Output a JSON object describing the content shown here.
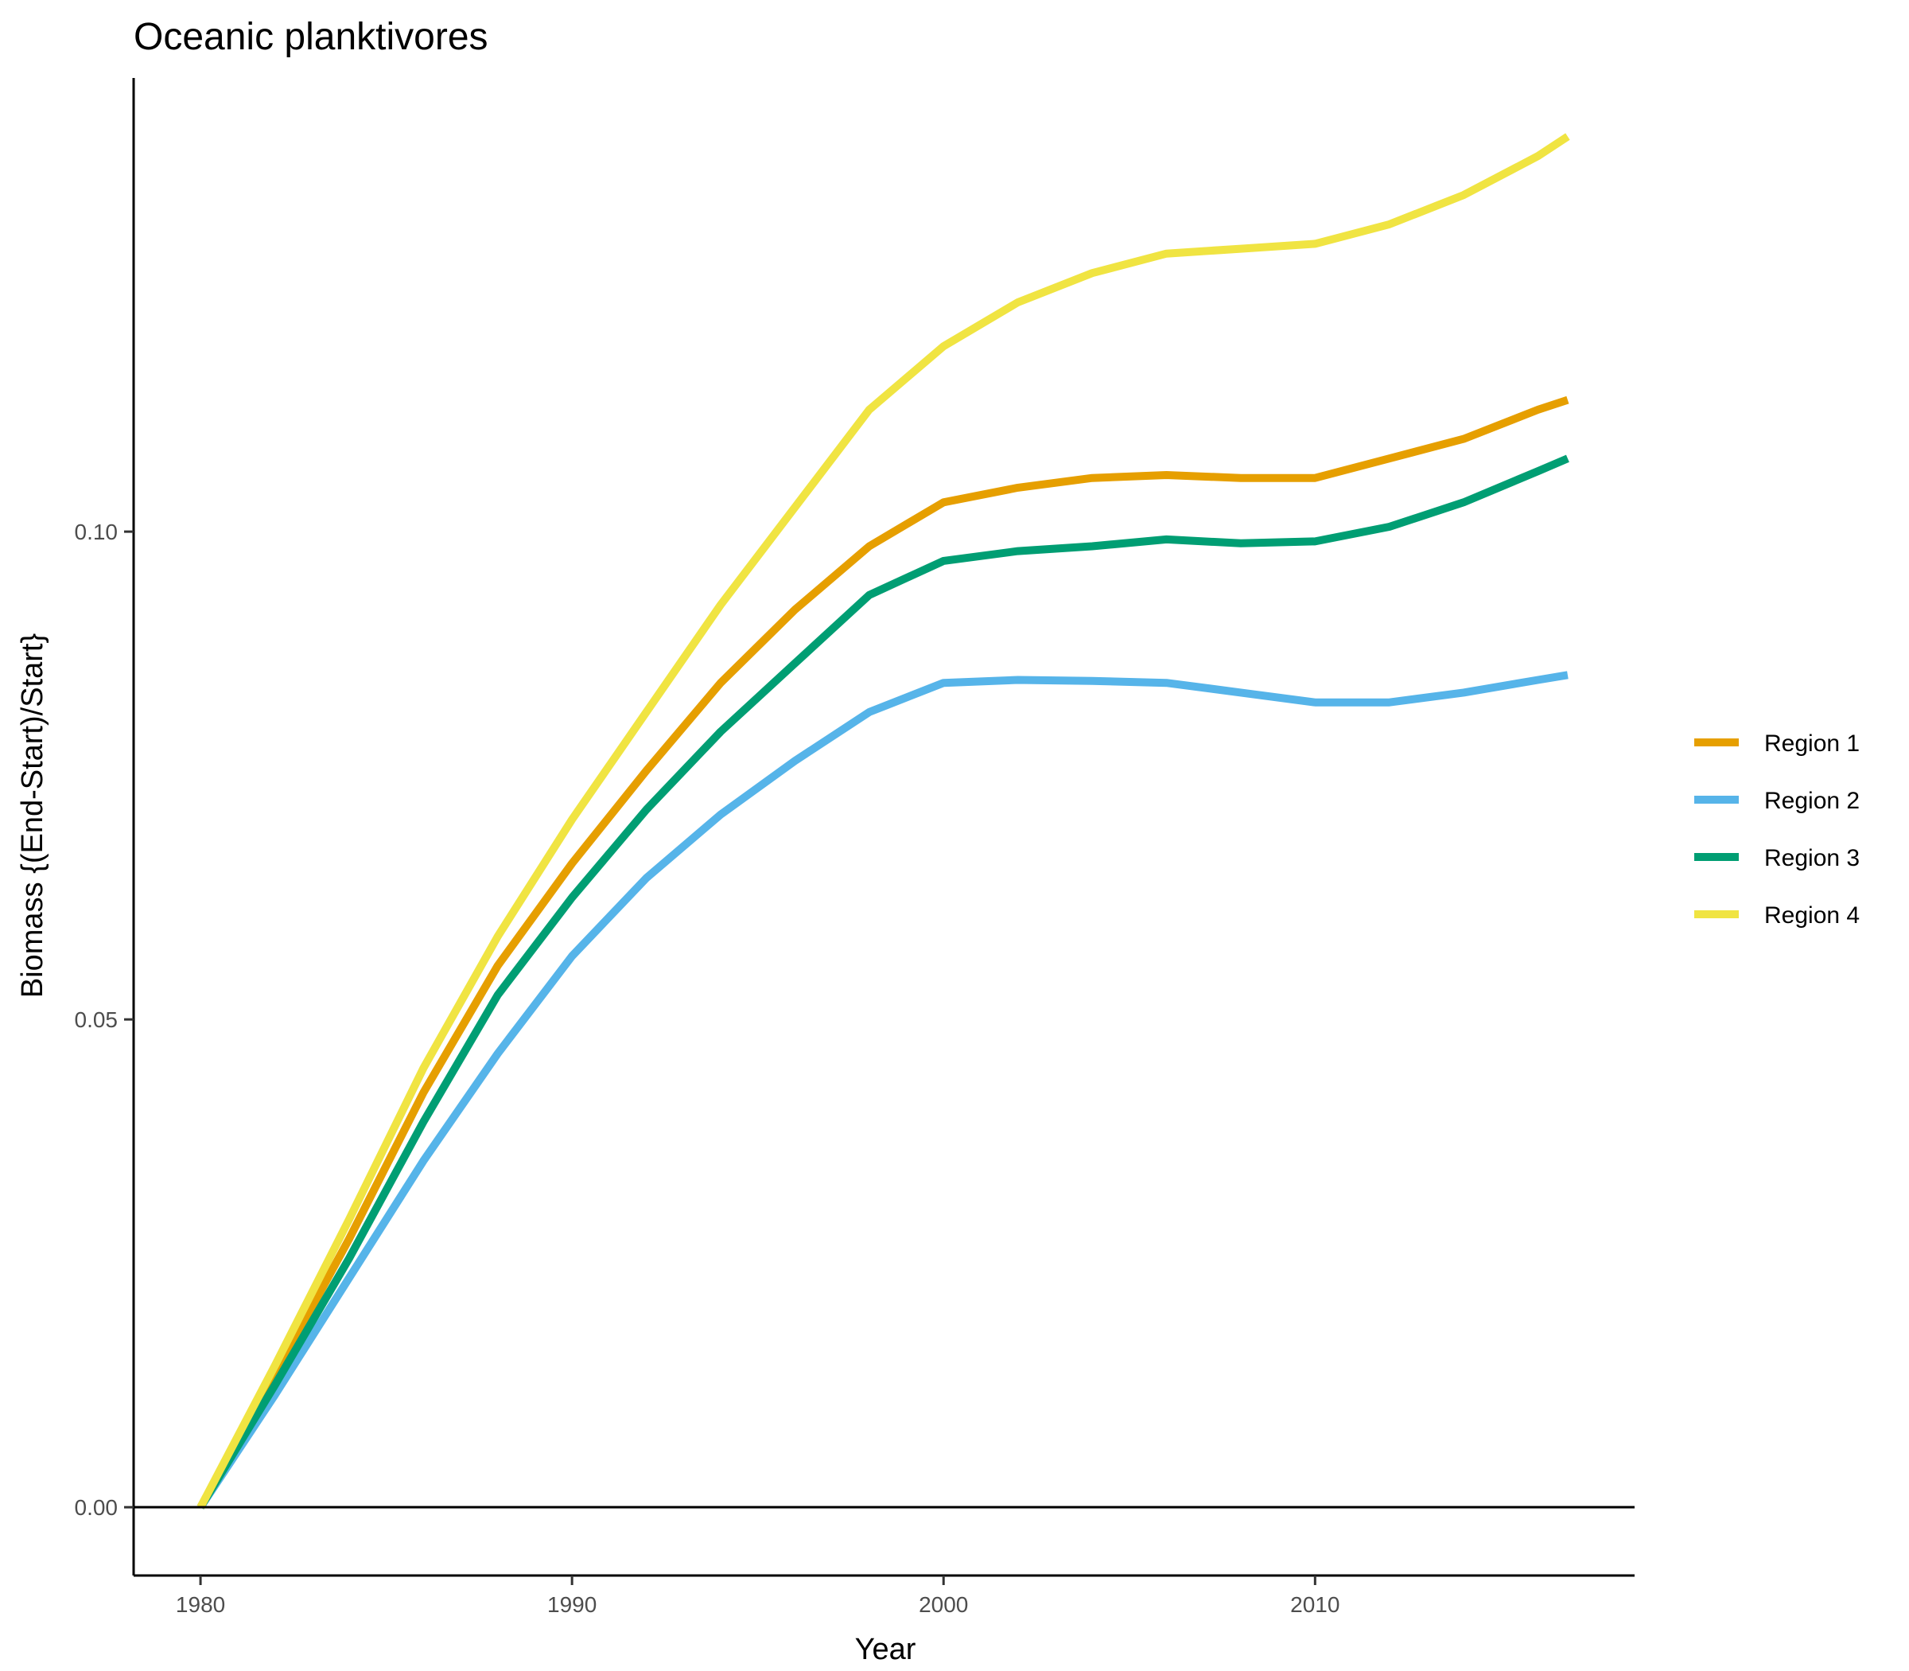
{
  "chart_data": {
    "type": "line",
    "title": "Oceanic planktivores",
    "xlabel": "Year",
    "ylabel": "Biomass {(End-Start)/Start}",
    "xlim": [
      1978.2,
      2018.6
    ],
    "ylim": [
      -0.007,
      0.1465
    ],
    "x_ticks": [
      1980,
      1990,
      2000,
      2010
    ],
    "x_tick_labels": [
      "1980",
      "1990",
      "2000",
      "2010"
    ],
    "y_ticks": [
      0.0,
      0.05,
      0.1
    ],
    "y_tick_labels": [
      "0.00",
      "0.05",
      "0.10"
    ],
    "reference_line_y": 0,
    "grid": false,
    "legend_position": "right",
    "series": [
      {
        "name": "Region 1",
        "color": "#E69F00",
        "points": [
          [
            1980,
            0.0
          ],
          [
            1982,
            0.0135
          ],
          [
            1984,
            0.0275
          ],
          [
            1986,
            0.0425
          ],
          [
            1988,
            0.0555
          ],
          [
            1990,
            0.066
          ],
          [
            1992,
            0.0755
          ],
          [
            1994,
            0.0845
          ],
          [
            1996,
            0.092
          ],
          [
            1998,
            0.0985
          ],
          [
            2000,
            0.103
          ],
          [
            2002,
            0.1045
          ],
          [
            2004,
            0.1055
          ],
          [
            2006,
            0.1058
          ],
          [
            2008,
            0.1055
          ],
          [
            2010,
            0.1055
          ],
          [
            2012,
            0.1075
          ],
          [
            2014,
            0.1095
          ],
          [
            2016,
            0.1125
          ],
          [
            2016.8,
            0.1135
          ]
        ]
      },
      {
        "name": "Region 2",
        "color": "#56B4E9",
        "points": [
          [
            1980,
            0.0
          ],
          [
            1982,
            0.0115
          ],
          [
            1984,
            0.0235
          ],
          [
            1986,
            0.0355
          ],
          [
            1988,
            0.0465
          ],
          [
            1990,
            0.0565
          ],
          [
            1992,
            0.0645
          ],
          [
            1994,
            0.071
          ],
          [
            1996,
            0.0765
          ],
          [
            1998,
            0.0815
          ],
          [
            2000,
            0.0845
          ],
          [
            2002,
            0.0848
          ],
          [
            2004,
            0.0847
          ],
          [
            2006,
            0.0845
          ],
          [
            2008,
            0.0835
          ],
          [
            2010,
            0.0825
          ],
          [
            2012,
            0.0825
          ],
          [
            2014,
            0.0835
          ],
          [
            2016,
            0.0848
          ],
          [
            2016.8,
            0.0853
          ]
        ]
      },
      {
        "name": "Region 3",
        "color": "#009E73",
        "points": [
          [
            1980,
            0.0
          ],
          [
            1982,
            0.0125
          ],
          [
            1984,
            0.0255
          ],
          [
            1986,
            0.0395
          ],
          [
            1988,
            0.0525
          ],
          [
            1990,
            0.0625
          ],
          [
            1992,
            0.0715
          ],
          [
            1994,
            0.0795
          ],
          [
            1996,
            0.0865
          ],
          [
            1998,
            0.0935
          ],
          [
            2000,
            0.097
          ],
          [
            2002,
            0.098
          ],
          [
            2004,
            0.0985
          ],
          [
            2006,
            0.0992
          ],
          [
            2008,
            0.0988
          ],
          [
            2010,
            0.099
          ],
          [
            2012,
            0.1005
          ],
          [
            2014,
            0.103
          ],
          [
            2016,
            0.1062
          ],
          [
            2016.8,
            0.1075
          ]
        ]
      },
      {
        "name": "Region 4",
        "color": "#F0E442",
        "points": [
          [
            1980,
            0.0
          ],
          [
            1982,
            0.0145
          ],
          [
            1984,
            0.0295
          ],
          [
            1986,
            0.045
          ],
          [
            1988,
            0.0585
          ],
          [
            1990,
            0.0705
          ],
          [
            1992,
            0.0815
          ],
          [
            1994,
            0.0925
          ],
          [
            1996,
            0.1025
          ],
          [
            1998,
            0.1125
          ],
          [
            2000,
            0.119
          ],
          [
            2002,
            0.1235
          ],
          [
            2004,
            0.1265
          ],
          [
            2006,
            0.1285
          ],
          [
            2008,
            0.129
          ],
          [
            2010,
            0.1295
          ],
          [
            2012,
            0.1315
          ],
          [
            2014,
            0.1345
          ],
          [
            2016,
            0.1385
          ],
          [
            2016.8,
            0.1405
          ]
        ]
      }
    ]
  }
}
